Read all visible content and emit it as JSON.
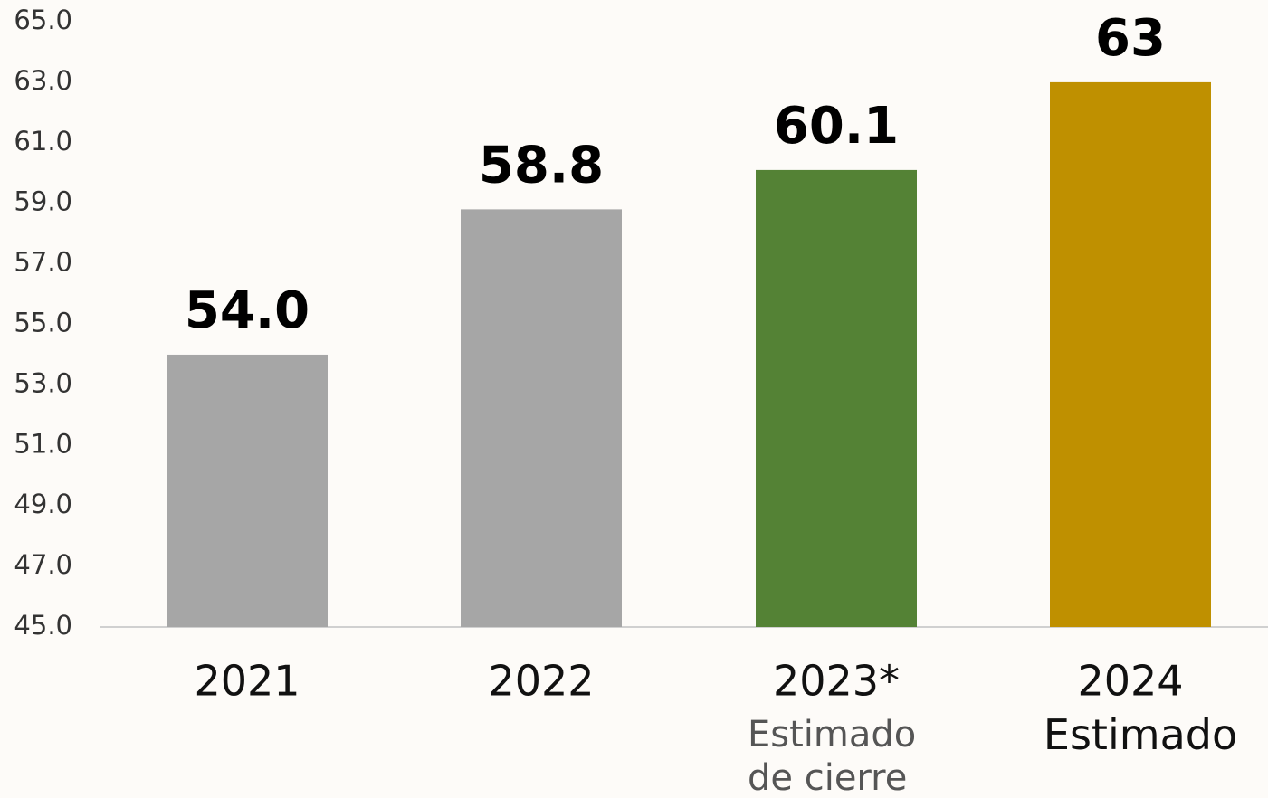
{
  "chart_data": {
    "type": "bar",
    "categories": [
      "2021",
      "2022",
      "2023*",
      "2024"
    ],
    "category_notes": [
      null,
      null,
      "Estimado de cierre",
      "Estimado"
    ],
    "values": [
      54.0,
      58.8,
      60.1,
      63
    ],
    "value_labels": [
      "54.0",
      "58.8",
      "60.1",
      "63"
    ],
    "colors": [
      "#a6a6a6",
      "#a6a6a6",
      "#548235",
      "#bf9000"
    ],
    "ylim": [
      45,
      65
    ],
    "yticks": [
      {
        "value": 45,
        "label": "45.0"
      },
      {
        "value": 47,
        "label": "47.0"
      },
      {
        "value": 49,
        "label": "49.0"
      },
      {
        "value": 51,
        "label": "51.0"
      },
      {
        "value": 53,
        "label": "53.0"
      },
      {
        "value": 55,
        "label": "55.0"
      },
      {
        "value": 57,
        "label": "57.0"
      },
      {
        "value": 59,
        "label": "59.0"
      },
      {
        "value": 61,
        "label": "61.0"
      },
      {
        "value": 63,
        "label": "63.0"
      },
      {
        "value": 65,
        "label": "65.0"
      }
    ],
    "grid": false
  }
}
